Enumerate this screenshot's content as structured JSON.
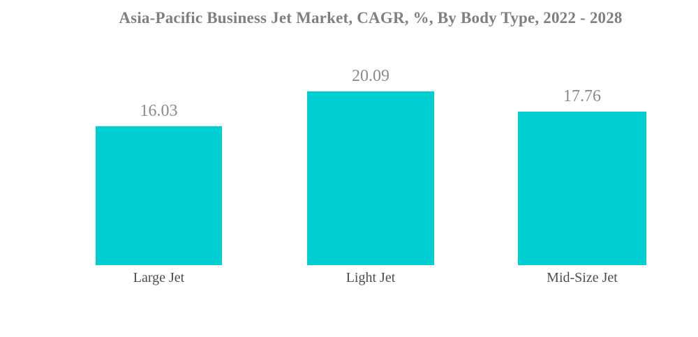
{
  "title": "Asia-Pacific Business Jet Market, CAGR, %, By Body Type, 2022 - 2028",
  "colors": {
    "background": "#ffffff",
    "bar": "#00CED1",
    "title_text": "#7f7f7f",
    "value_text": "#8a8a8a",
    "category_text": "#4d4d4d"
  },
  "chart_data": {
    "type": "bar",
    "title": "Asia-Pacific Business Jet Market, CAGR, %, By Body Type, 2022 - 2028",
    "categories": [
      "Large Jet",
      "Light Jet",
      "Mid-Size Jet"
    ],
    "values": [
      16.03,
      20.09,
      17.76
    ],
    "value_labels": [
      "16.03",
      "20.09",
      "17.76"
    ],
    "xlabel": "",
    "ylabel": "",
    "ylim": [
      0,
      22.5
    ],
    "grid": false,
    "legend": false,
    "axes_visible": false,
    "bar_color": "#00CED1"
  }
}
